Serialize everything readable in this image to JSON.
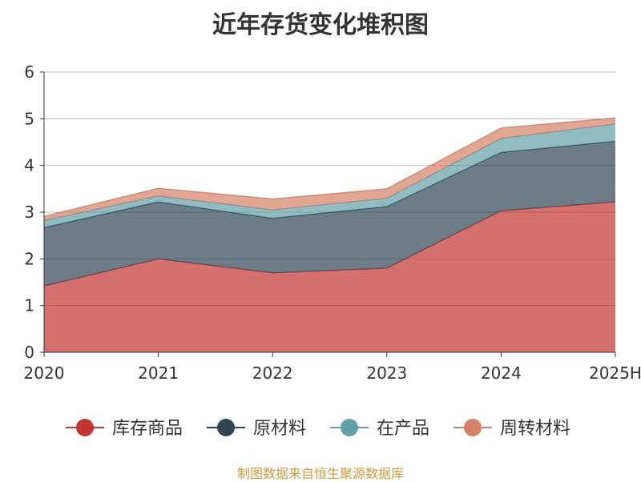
{
  "chart_data": {
    "type": "area",
    "stacked": true,
    "title": "近年存货变化堆积图",
    "xlabel": "",
    "ylabel": "",
    "categories": [
      "2020",
      "2021",
      "2022",
      "2023",
      "2024",
      "2025H"
    ],
    "ylim": [
      0,
      6
    ],
    "yticks": [
      0,
      1,
      2,
      3,
      4,
      5,
      6
    ],
    "grid": true,
    "legend_position": "bottom",
    "series": [
      {
        "name": "库存商品",
        "values": [
          1.42,
          2.0,
          1.7,
          1.8,
          3.03,
          3.22
        ],
        "color": "#c23531",
        "legend_color": "#c23531"
      },
      {
        "name": "原材料",
        "values": [
          1.25,
          1.22,
          1.17,
          1.32,
          1.25,
          1.3
        ],
        "color": "#2f4554",
        "legend_color": "#2f4554"
      },
      {
        "name": "在产品",
        "values": [
          0.15,
          0.13,
          0.18,
          0.18,
          0.3,
          0.37
        ],
        "color": "#61a0a8",
        "legend_color": "#61a0a8"
      },
      {
        "name": "周转材料",
        "values": [
          0.09,
          0.16,
          0.23,
          0.2,
          0.22,
          0.13
        ],
        "color": "#d48265",
        "legend_color": "#d48265"
      }
    ]
  },
  "source_note": "制图数据来自恒生聚源数据库"
}
